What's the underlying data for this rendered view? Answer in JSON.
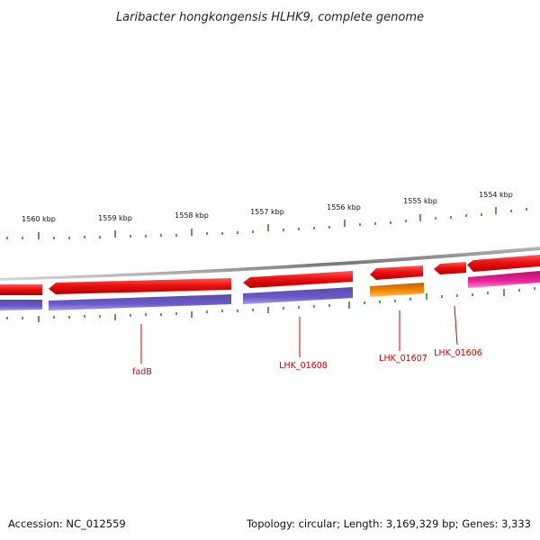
{
  "title": "Laribacter hongkongensis HLHK9, complete genome",
  "scale_labels": [
    "1560 kbp",
    "1559 kbp",
    "1558 kbp",
    "1557 kbp",
    "1556 kbp",
    "1555 kbp",
    "1554 kbp"
  ],
  "gene_labels": [
    "fadB",
    "LHK_01608",
    "LHK_01607",
    "LHK_01606"
  ],
  "footer": {
    "accession": "Accession: NC_012559",
    "stats": "Topology: circular; Length: 3,169,329 bp; Genes: 3,333"
  },
  "colors": {
    "cds_forward": "#ee1111",
    "cds_reverse": "#6655bb",
    "tick": "#2e8b2e",
    "backbone": "#888888",
    "label": "#cc0000",
    "orange_feature": "#ff8c00",
    "magenta_feature": "#ee2299"
  }
}
